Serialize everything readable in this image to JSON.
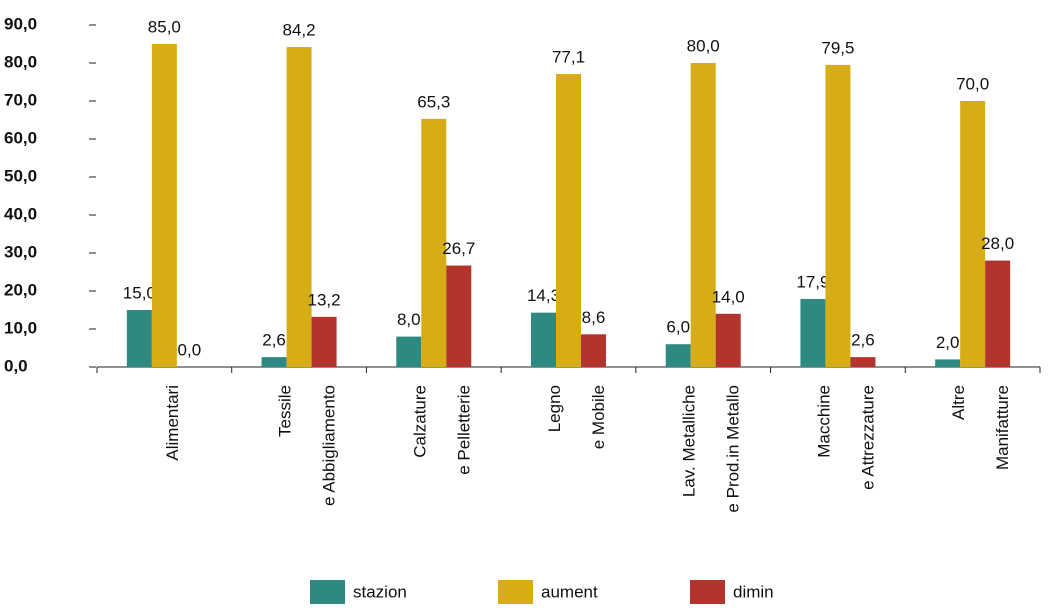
{
  "chart_data": {
    "type": "bar",
    "categories": [
      [
        "Alimentari"
      ],
      [
        "Tessile",
        "e Abbigliamento"
      ],
      [
        "Calzature",
        "e Pelletterie"
      ],
      [
        "Legno",
        "e Mobile"
      ],
      [
        "Lav. Metalliche",
        "e Prod.in Metallo"
      ],
      [
        "Macchine",
        "e Attrezzature"
      ],
      [
        "Altre",
        "Manifatture"
      ]
    ],
    "series": [
      {
        "name": "stazion",
        "color": "#2e8a80",
        "values": [
          15.0,
          2.6,
          8.0,
          14.3,
          6.0,
          17.9,
          2.0
        ],
        "value_labels": [
          "15,0",
          "2,6",
          "8,0",
          "14,3",
          "6,0",
          "17,9",
          "2,0"
        ]
      },
      {
        "name": "aument",
        "color": "#d6ad16",
        "values": [
          85.0,
          84.2,
          65.3,
          77.1,
          80.0,
          79.5,
          70.0
        ],
        "value_labels": [
          "85,0",
          "84,2",
          "65,3",
          "77,1",
          "80,0",
          "79,5",
          "70,0"
        ]
      },
      {
        "name": "dimin",
        "color": "#b3342c",
        "values": [
          0.0,
          13.2,
          26.7,
          8.6,
          14.0,
          2.6,
          28.0
        ],
        "value_labels": [
          "0,0",
          "13,2",
          "26,7",
          "8,6",
          "14,0",
          "2,6",
          "28,0"
        ]
      }
    ],
    "ylim": [
      0,
      90
    ],
    "yticks": [
      {
        "value": 0,
        "label": "0,0"
      },
      {
        "value": 10,
        "label": "10,0"
      },
      {
        "value": 20,
        "label": "20,0"
      },
      {
        "value": 30,
        "label": "30,0"
      },
      {
        "value": 40,
        "label": "40,0"
      },
      {
        "value": 50,
        "label": "50,0"
      },
      {
        "value": 60,
        "label": "60,0"
      },
      {
        "value": 70,
        "label": "70,0"
      },
      {
        "value": 80,
        "label": "80,0"
      },
      {
        "value": 90,
        "label": "90,0"
      }
    ],
    "legend": "bottom"
  }
}
